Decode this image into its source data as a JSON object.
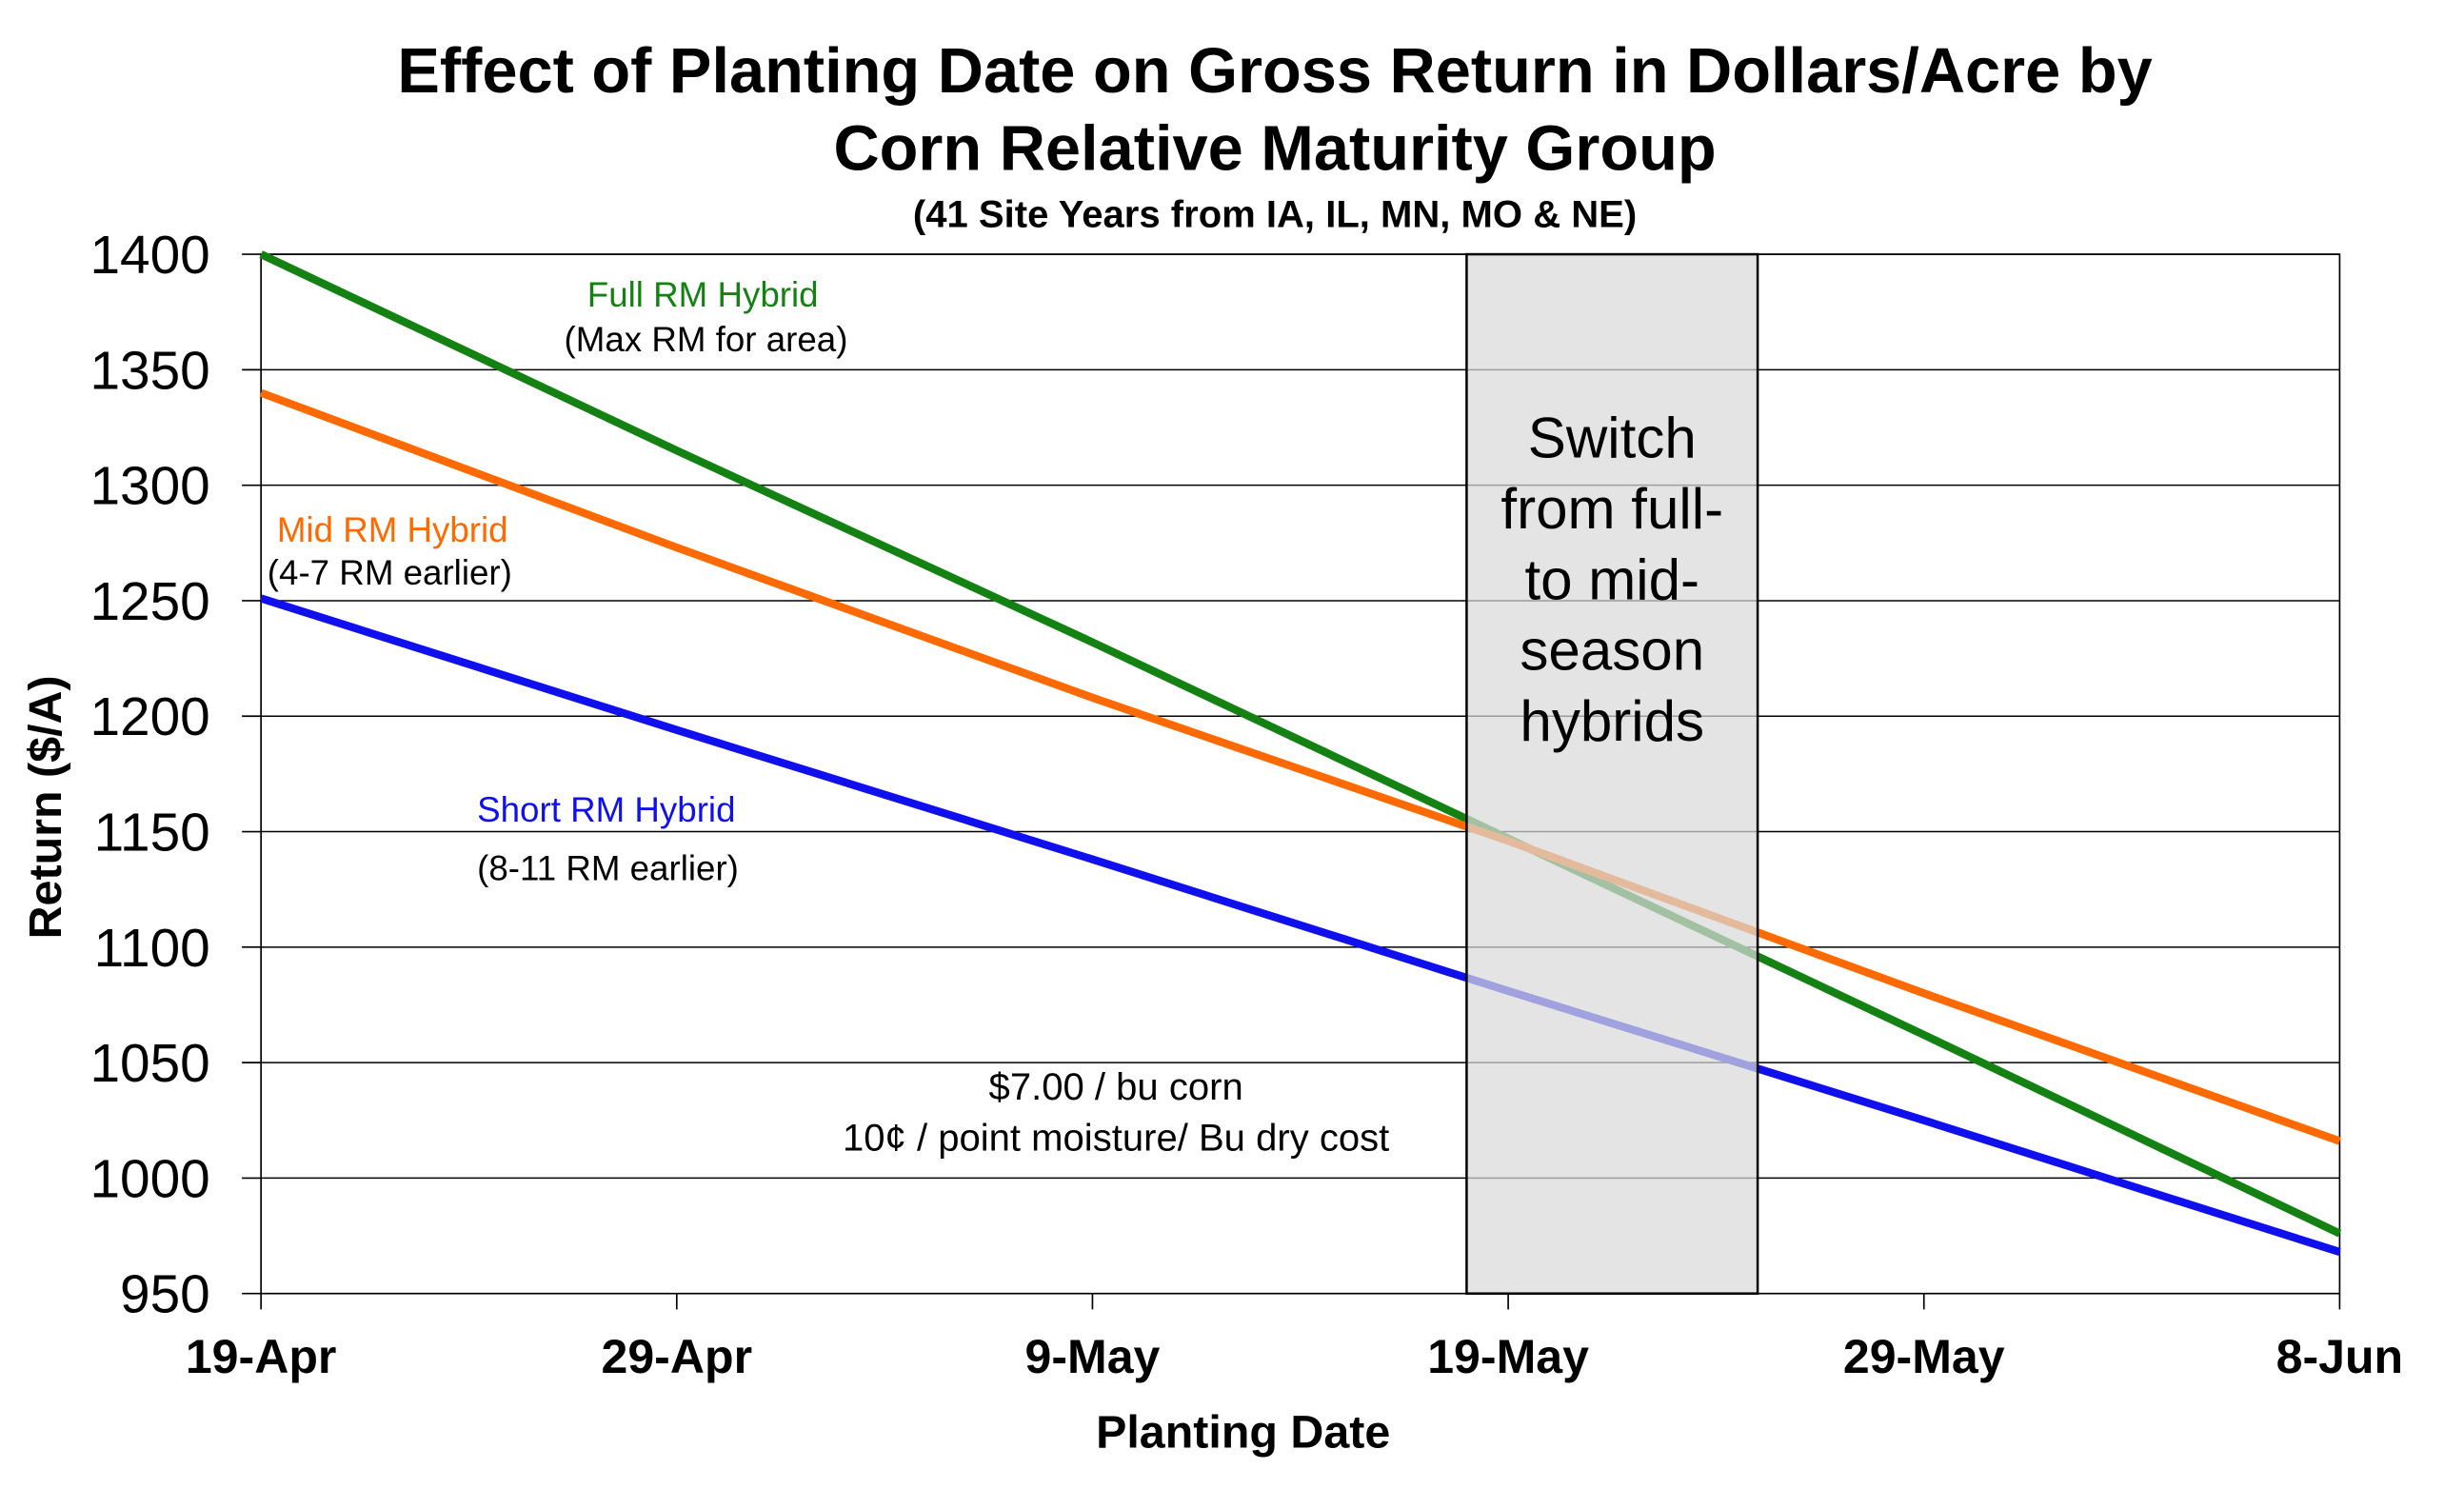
{
  "chart_data": {
    "type": "line",
    "title": "Effect of Planting Date on Gross Return in Dollars/Acre by",
    "title_line2": "Corn Relative Maturity Group",
    "subtitle": "(41 Site Years from IA, IL, MN, MO & NE)",
    "xlabel": "Planting Date",
    "ylabel": "Return ($/A)",
    "ylim": [
      950,
      1400
    ],
    "yticks": [
      950,
      1000,
      1050,
      1100,
      1150,
      1200,
      1250,
      1300,
      1350,
      1400
    ],
    "x_tick_labels": [
      "19-Apr",
      "29-Apr",
      "9-May",
      "19-May",
      "29-May",
      "8-Jun"
    ],
    "x": [
      "19-Apr",
      "29-Apr",
      "9-May",
      "19-May",
      "29-May",
      "8-Jun"
    ],
    "grid": true,
    "series": [
      {
        "name": "Full RM Hybrid",
        "note": "(Max RM for area)",
        "color": "#138213",
        "values": [
          1400,
          1315,
          1232,
          1147,
          1062,
          976
        ]
      },
      {
        "name": "Mid RM Hybrid",
        "note": "(4-7 RM earlier)",
        "color": "#ff6a00",
        "values": [
          1340,
          1273,
          1208,
          1146,
          1080,
          1016
        ]
      },
      {
        "name": "Short RM Hybrid",
        "note": "(8-11 RM earlier)",
        "color": "#1010ee",
        "values": [
          1251,
          1194,
          1138,
          1081,
          1025,
          968
        ]
      }
    ],
    "shaded_region": {
      "x_range": [
        "18-May",
        "25-May"
      ],
      "label_lines": [
        "Switch",
        "from full-",
        "to mid-",
        "season",
        "hybrids"
      ],
      "color": "#d9d9d9"
    },
    "annotations": [
      "$7.00 / bu corn",
      "10¢ / point moisture/ Bu dry cost"
    ]
  }
}
